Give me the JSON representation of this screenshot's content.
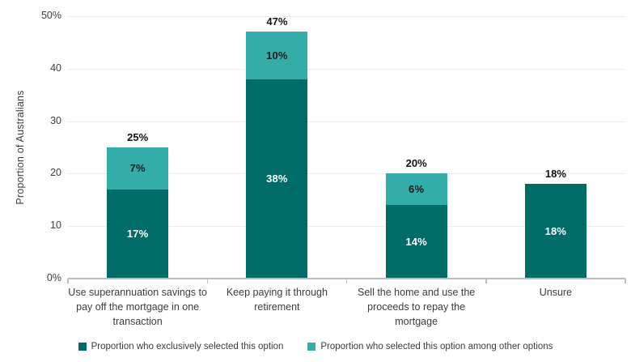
{
  "chart_data": {
    "type": "bar",
    "stacked": true,
    "title": "",
    "ylabel": "Proportion of Australians",
    "ylim": [
      0,
      50
    ],
    "grid": true,
    "legend_position": "bottom",
    "yticks": [
      {
        "value": 0,
        "label": "0%"
      },
      {
        "value": 10,
        "label": "10"
      },
      {
        "value": 20,
        "label": "20"
      },
      {
        "value": 30,
        "label": "30"
      },
      {
        "value": 40,
        "label": "40"
      },
      {
        "value": 50,
        "label": "50%"
      }
    ],
    "categories": [
      "Use superannuation savings to pay off the mortgage in one transaction",
      "Keep paying it through retirement",
      "Sell the home and use the proceeds to repay the mortgage",
      "Unsure"
    ],
    "series": [
      {
        "name": "Proportion who exclusively selected this option",
        "color": "#006C67",
        "values": [
          17,
          38,
          14,
          18
        ],
        "labels": [
          "17%",
          "38%",
          "14%",
          "18%"
        ],
        "label_color": "#ffffff"
      },
      {
        "name": "Proportion who selected this option among other options",
        "color": "#34ACA7",
        "values": [
          7,
          10,
          6,
          0
        ],
        "labels": [
          "7%",
          "10%",
          "6%",
          ""
        ],
        "label_color": "#1a1a1a"
      }
    ],
    "totals": [
      25,
      47,
      20,
      18
    ],
    "total_labels": [
      "25%",
      "47%",
      "20%",
      "18%"
    ]
  },
  "colors": {
    "axis_line": "#bdbdbd",
    "gridline": "#eeeeee",
    "tick_text": "#3c3c3c",
    "total_label_text": "#111111",
    "background": "#ffffff"
  }
}
